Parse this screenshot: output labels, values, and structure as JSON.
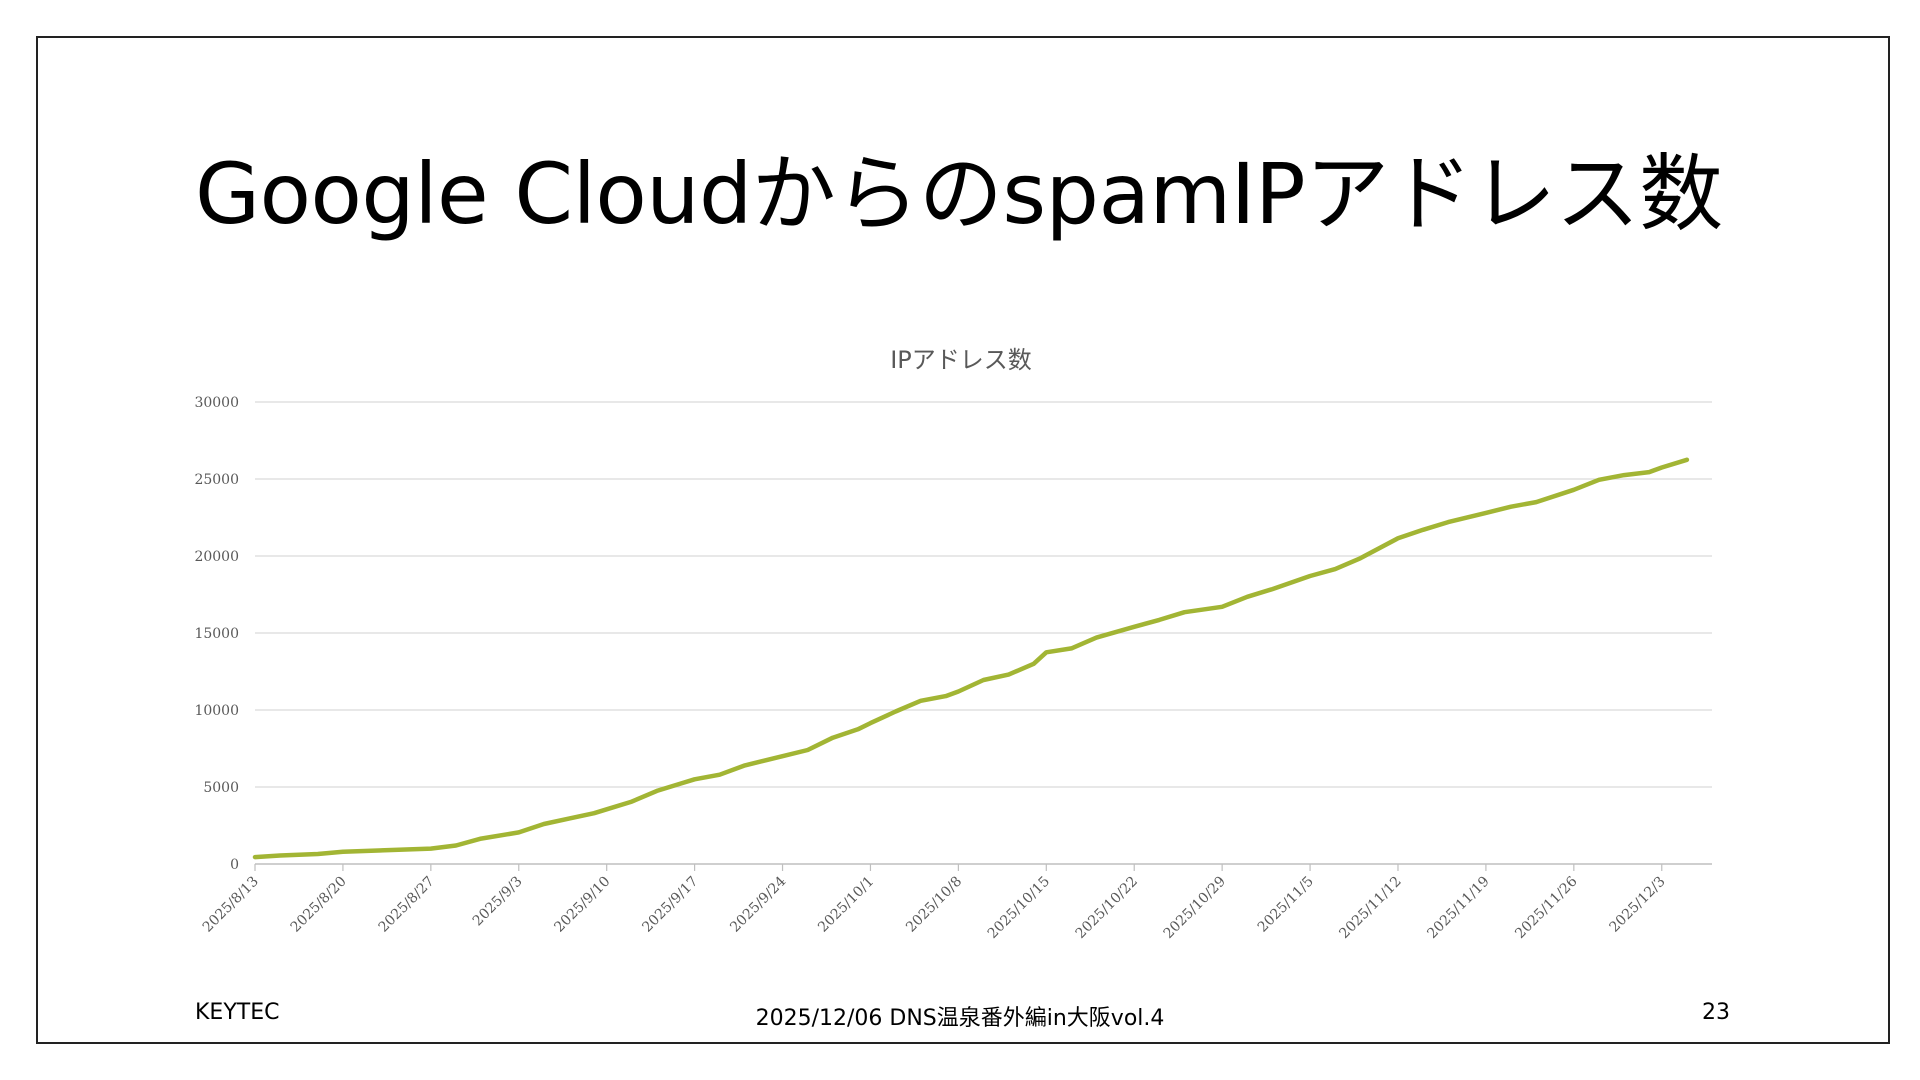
{
  "slide": {
    "title": "Google CloudからのspamIPアドレス数",
    "footer_left": "KEYTEC",
    "footer_center": "2025/12/06 DNS温泉番外編in大阪vol.4",
    "page_number": "23"
  },
  "chart_data": {
    "type": "line",
    "title": "IPアドレス数",
    "xlabel": "",
    "ylabel": "",
    "ylim": [
      0,
      30000
    ],
    "yticks": [
      0,
      5000,
      10000,
      15000,
      20000,
      25000,
      30000
    ],
    "xlim": [
      "2025/8/13",
      "2025/12/7"
    ],
    "xticks": [
      "2025/8/13",
      "2025/8/20",
      "2025/8/27",
      "2025/9/3",
      "2025/9/10",
      "2025/9/17",
      "2025/9/24",
      "2025/10/1",
      "2025/10/8",
      "2025/10/15",
      "2025/10/22",
      "2025/10/29",
      "2025/11/5",
      "2025/11/12",
      "2025/11/19",
      "2025/11/26",
      "2025/12/3"
    ],
    "grid": true,
    "legend": "none",
    "line_color": "#a2b534",
    "series": [
      {
        "points": [
          [
            "2025/8/13",
            450
          ],
          [
            "2025/8/15",
            550
          ],
          [
            "2025/8/18",
            650
          ],
          [
            "2025/8/20",
            800
          ],
          [
            "2025/8/27",
            1000
          ],
          [
            "2025/8/29",
            1200
          ],
          [
            "2025/8/31",
            1650
          ],
          [
            "2025/9/3",
            2050
          ],
          [
            "2025/9/5",
            2600
          ],
          [
            "2025/9/7",
            2950
          ],
          [
            "2025/9/9",
            3300
          ],
          [
            "2025/9/10",
            3550
          ],
          [
            "2025/9/12",
            4050
          ],
          [
            "2025/9/14",
            4750
          ],
          [
            "2025/9/16",
            5250
          ],
          [
            "2025/9/17",
            5500
          ],
          [
            "2025/9/19",
            5800
          ],
          [
            "2025/9/21",
            6400
          ],
          [
            "2025/9/24",
            7000
          ],
          [
            "2025/9/26",
            7400
          ],
          [
            "2025/9/28",
            8200
          ],
          [
            "2025/9/30",
            8750
          ],
          [
            "2025/10/1",
            9150
          ],
          [
            "2025/10/3",
            9900
          ],
          [
            "2025/10/5",
            10600
          ],
          [
            "2025/10/7",
            10900
          ],
          [
            "2025/10/8",
            11200
          ],
          [
            "2025/10/10",
            11950
          ],
          [
            "2025/10/12",
            12300
          ],
          [
            "2025/10/14",
            13000
          ],
          [
            "2025/10/15",
            13750
          ],
          [
            "2025/10/17",
            14000
          ],
          [
            "2025/10/19",
            14700
          ],
          [
            "2025/10/22",
            15400
          ],
          [
            "2025/10/24",
            15850
          ],
          [
            "2025/10/26",
            16350
          ],
          [
            "2025/10/29",
            16700
          ],
          [
            "2025/10/31",
            17350
          ],
          [
            "2025/11/2",
            17850
          ],
          [
            "2025/11/5",
            18700
          ],
          [
            "2025/11/7",
            19150
          ],
          [
            "2025/11/9",
            19850
          ],
          [
            "2025/11/12",
            21150
          ],
          [
            "2025/11/14",
            21700
          ],
          [
            "2025/11/16",
            22200
          ],
          [
            "2025/11/19",
            22800
          ],
          [
            "2025/11/21",
            23200
          ],
          [
            "2025/11/23",
            23500
          ],
          [
            "2025/11/26",
            24300
          ],
          [
            "2025/11/28",
            24950
          ],
          [
            "2025/11/30",
            25250
          ],
          [
            "2025/12/2",
            25450
          ],
          [
            "2025/12/3",
            25750
          ],
          [
            "2025/12/5",
            26250
          ]
        ]
      }
    ]
  }
}
